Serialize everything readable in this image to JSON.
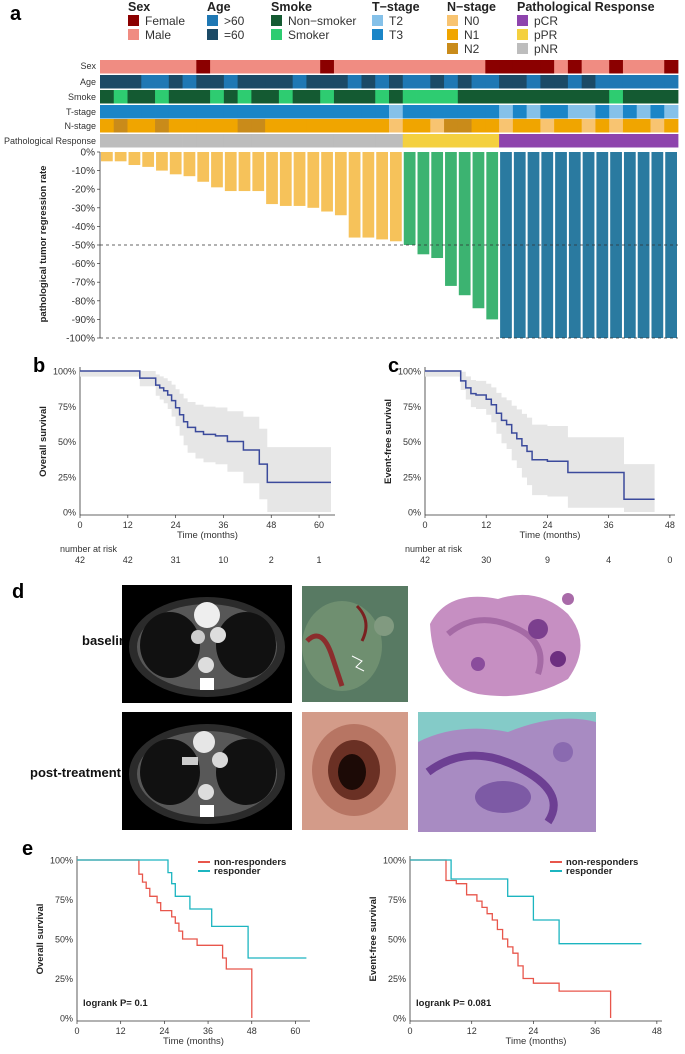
{
  "panels": {
    "a": "a",
    "b": "b",
    "c": "c",
    "d": "d",
    "e": "e"
  },
  "legend": {
    "sex": {
      "title": "Sex",
      "items": [
        {
          "label": "Female",
          "color": "#8b0000"
        },
        {
          "label": "Male",
          "color": "#f08c82"
        }
      ]
    },
    "age": {
      "title": "Age",
      "items": [
        {
          "label": ">60",
          "color": "#1f78b4"
        },
        {
          "label": "=60",
          "color": "#1b4a66"
        }
      ]
    },
    "smoke": {
      "title": "Smoke",
      "items": [
        {
          "label": "Non−smoker",
          "color": "#145a32"
        },
        {
          "label": "Smoker",
          "color": "#2ecc71"
        }
      ]
    },
    "tstage": {
      "title": "T−stage",
      "items": [
        {
          "label": "T2",
          "color": "#85c1e9"
        },
        {
          "label": "T3",
          "color": "#1a85c7"
        }
      ]
    },
    "nstage": {
      "title": "N−stage",
      "items": [
        {
          "label": "N0",
          "color": "#f8c471"
        },
        {
          "label": "N1",
          "color": "#f0a500"
        },
        {
          "label": "N2",
          "color": "#c98b1a"
        }
      ]
    },
    "response": {
      "title": "Pathological Response",
      "items": [
        {
          "label": "pCR",
          "color": "#8e44ad"
        },
        {
          "label": "pPR",
          "color": "#f4d03f"
        },
        {
          "label": "pNR",
          "color": "#bdbdbd"
        }
      ]
    }
  },
  "tracks": {
    "labels": [
      "Sex",
      "Age",
      "Smoke",
      "T-stage",
      "N-stage",
      "Pathological Response"
    ]
  },
  "chart_data": [
    {
      "id": "waterfall",
      "type": "bar",
      "title": "",
      "ylabel": "pathological tumor regression rate",
      "ylim": [
        -100,
        0
      ],
      "yticks": [
        "0%",
        "-10%",
        "-20%",
        "-30%",
        "-40%",
        "-50%",
        "-60%",
        "-70%",
        "-80%",
        "-90%",
        "-100%"
      ],
      "reference_line": -50,
      "values": [
        -5,
        -5,
        -7,
        -8,
        -10,
        -12,
        -13,
        -16,
        -19,
        -21,
        -21,
        -21,
        -28,
        -29,
        -29,
        -30,
        -32,
        -34,
        -46,
        -46,
        -47,
        -48,
        -50,
        -55,
        -57,
        -72,
        -77,
        -84,
        -90,
        -100,
        -100,
        -100,
        -100,
        -100,
        -100,
        -100,
        -100,
        -100,
        -100,
        -100,
        -100,
        -100
      ],
      "colors": {
        "pNR": "#f6c25a",
        "pPR": "#3cb371",
        "pCR": "#2a7aa0"
      },
      "groups": {
        "pNR": 22,
        "pPR": 7,
        "pCR": 13
      }
    },
    {
      "id": "os_all",
      "type": "line",
      "title": "",
      "ylabel": "Overall survival",
      "xlabel": "Time (months)",
      "xticks": [
        "0",
        "12",
        "24",
        "36",
        "48",
        "60"
      ],
      "xlim": [
        0,
        64
      ],
      "yticks": [
        "0%",
        "25%",
        "50%",
        "75%",
        "100%"
      ],
      "ylim": [
        0,
        100
      ],
      "x": [
        0,
        12,
        15,
        18,
        19,
        20,
        21,
        22,
        23,
        24,
        25,
        26,
        27,
        29,
        31,
        34,
        36,
        37,
        40,
        41,
        44,
        45,
        47,
        63
      ],
      "y": [
        100,
        100,
        95,
        95,
        90,
        88,
        86,
        83,
        79,
        74,
        69,
        64,
        60,
        57,
        55,
        54,
        54,
        50,
        50,
        44,
        44,
        34,
        21,
        21
      ],
      "risk_title": "number at risk",
      "risk": [
        "42",
        "42",
        "31",
        "10",
        "2",
        "1"
      ]
    },
    {
      "id": "efs_all",
      "type": "line",
      "title": "",
      "ylabel": "Event-free survival",
      "xlabel": "Time (months)",
      "xticks": [
        "0",
        "12",
        "24",
        "36",
        "48"
      ],
      "xlim": [
        0,
        49
      ],
      "yticks": [
        "0%",
        "25%",
        "50%",
        "75%",
        "100%"
      ],
      "ylim": [
        0,
        100
      ],
      "x": [
        0,
        6,
        7,
        8,
        9,
        10,
        12,
        13,
        14,
        15,
        16,
        17,
        18,
        19,
        20,
        21,
        22,
        24,
        28,
        38,
        39,
        45
      ],
      "y": [
        100,
        100,
        93,
        88,
        84,
        83,
        80,
        76,
        70,
        65,
        62,
        56,
        52,
        47,
        43,
        37,
        37,
        36,
        28,
        28,
        9,
        9
      ],
      "risk_title": "number at risk",
      "risk": [
        "42",
        "30",
        "9",
        "4",
        "0"
      ]
    },
    {
      "id": "os_resp",
      "type": "line",
      "title": "",
      "ylabel": "Overall survival",
      "xlabel": "Time (months)",
      "xticks": [
        "0",
        "12",
        "24",
        "36",
        "48",
        "60"
      ],
      "xlim": [
        0,
        64
      ],
      "yticks": [
        "0%",
        "25%",
        "50%",
        "75%",
        "100%"
      ],
      "ylim": [
        0,
        100
      ],
      "annotation": "logrank P= 0.1",
      "series": [
        {
          "name": "non-responders",
          "color": "#e8564b",
          "x": [
            0,
            16,
            17,
            18,
            19,
            20,
            22,
            23,
            26,
            27,
            28,
            29,
            33,
            36,
            40,
            41,
            47,
            48
          ],
          "y": [
            100,
            100,
            91,
            86,
            82,
            77,
            73,
            68,
            64,
            60,
            55,
            50,
            46,
            46,
            38,
            31,
            31,
            0
          ]
        },
        {
          "name": "responder",
          "color": "#1cb5c0",
          "x": [
            0,
            24,
            25,
            26,
            27,
            30,
            31,
            36,
            37,
            46,
            47,
            63
          ],
          "y": [
            100,
            100,
            92,
            85,
            77,
            77,
            69,
            69,
            58,
            58,
            38,
            38
          ]
        }
      ]
    },
    {
      "id": "efs_resp",
      "type": "line",
      "title": "",
      "ylabel": "Event-free survival",
      "xlabel": "Time (months)",
      "xticks": [
        "0",
        "12",
        "24",
        "36",
        "48"
      ],
      "xlim": [
        0,
        49
      ],
      "yticks": [
        "0%",
        "25%",
        "50%",
        "75%",
        "100%"
      ],
      "ylim": [
        0,
        100
      ],
      "annotation": "logrank P= 0.081",
      "series": [
        {
          "name": "non-responders",
          "color": "#e8564b",
          "x": [
            0,
            6,
            7,
            9,
            11,
            13,
            14,
            15,
            16,
            17,
            18,
            19,
            20,
            21,
            22,
            24,
            29,
            38,
            39
          ],
          "y": [
            100,
            100,
            87,
            85,
            78,
            74,
            70,
            66,
            62,
            56,
            50,
            45,
            41,
            33,
            25,
            22,
            17,
            17,
            0
          ]
        },
        {
          "name": "responder",
          "color": "#1cb5c0",
          "x": [
            0,
            7,
            8,
            18,
            19,
            24,
            29,
            45
          ],
          "y": [
            100,
            100,
            88,
            88,
            77,
            62,
            47,
            47
          ]
        }
      ]
    }
  ],
  "images": {
    "row1": "baseline",
    "row2": "post-treatment"
  }
}
